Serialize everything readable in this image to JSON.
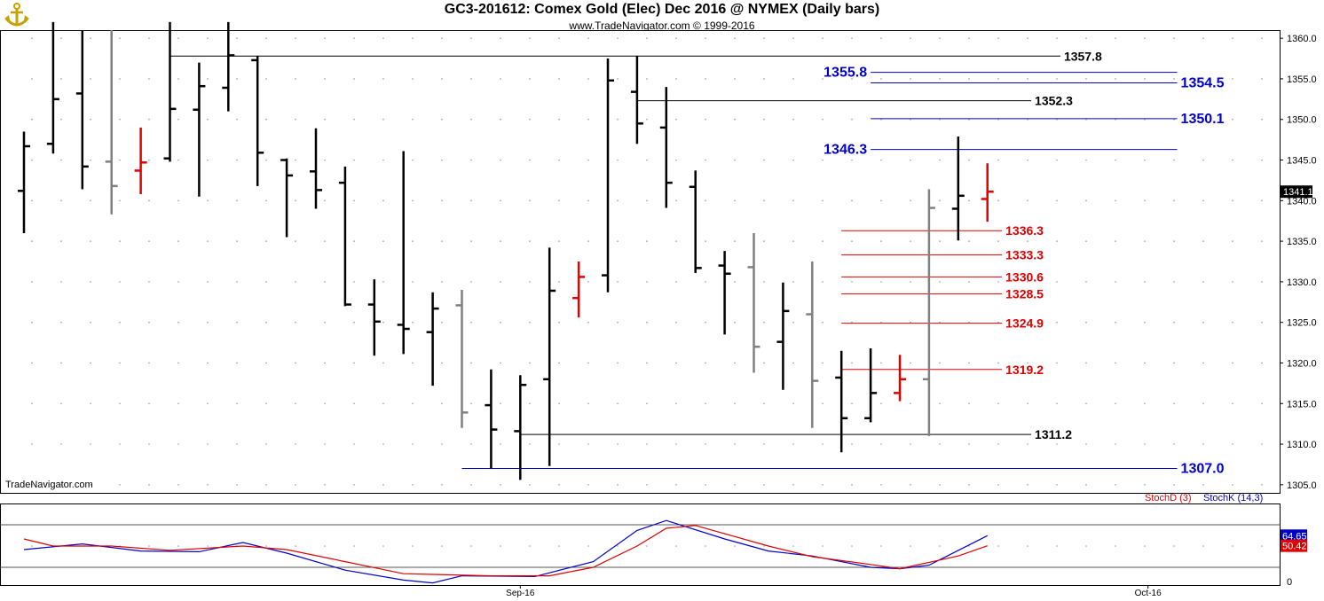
{
  "header": {
    "title": "GC3-201612:  Comex Gold (Elec) Dec 2016 @ NYMEX  (Daily bars)",
    "subtitle": "www.TradeNavigator.com © 1999-2016",
    "watermark": "TradeNavigator.com"
  },
  "colors": {
    "black_bar": "#000000",
    "gray_bar": "#808080",
    "red_bar": "#e00000",
    "blue_level": "#0000cc",
    "red_level": "#e00000",
    "black_level": "#000000",
    "stoch_k": "#0000cc",
    "stoch_d": "#e00000"
  },
  "chart_data": [
    {
      "type": "ohlc",
      "ylim": [
        1304,
        1361
      ],
      "y_ticks": [
        1305.0,
        1310.0,
        1315.0,
        1320.0,
        1325.0,
        1330.0,
        1335.0,
        1340.0,
        1345.0,
        1350.0,
        1355.0,
        1360.0
      ],
      "x_labels": [
        {
          "label": "Sep-16",
          "bar_index": 17
        },
        {
          "label": "Oct-16",
          "bar_index": 38.5
        }
      ],
      "last_price": {
        "label": "1341.1",
        "value": 1341.1
      },
      "bars": [
        {
          "o": 1341.2,
          "h": 1348.5,
          "l": 1336.0,
          "c": 1346.7,
          "color": "black"
        },
        {
          "o": 1347.0,
          "h": 1362.0,
          "l": 1345.8,
          "c": 1352.5,
          "color": "black"
        },
        {
          "o": 1353.2,
          "h": 1361.0,
          "l": 1341.4,
          "c": 1344.2,
          "color": "black"
        },
        {
          "o": 1344.8,
          "h": 1361.0,
          "l": 1338.3,
          "c": 1341.8,
          "color": "gray"
        },
        {
          "o": 1343.7,
          "h": 1349.0,
          "l": 1340.8,
          "c": 1344.7,
          "color": "red"
        },
        {
          "o": 1345.2,
          "h": 1362.0,
          "l": 1344.8,
          "c": 1351.3,
          "color": "black"
        },
        {
          "o": 1351.2,
          "h": 1357.0,
          "l": 1340.5,
          "c": 1354.1,
          "color": "black"
        },
        {
          "o": 1353.9,
          "h": 1362.0,
          "l": 1351.0,
          "c": 1357.9,
          "color": "black"
        },
        {
          "o": 1357.3,
          "h": 1357.8,
          "l": 1341.8,
          "c": 1345.9,
          "color": "black"
        },
        {
          "o": 1345.0,
          "h": 1345.2,
          "l": 1335.5,
          "c": 1343.1,
          "color": "black"
        },
        {
          "o": 1343.6,
          "h": 1348.9,
          "l": 1339.0,
          "c": 1341.3,
          "color": "black"
        },
        {
          "o": 1342.2,
          "h": 1344.2,
          "l": 1327.0,
          "c": 1327.2,
          "color": "black"
        },
        {
          "o": 1327.2,
          "h": 1330.3,
          "l": 1320.9,
          "c": 1325.1,
          "color": "black"
        },
        {
          "o": 1324.7,
          "h": 1346.1,
          "l": 1321.1,
          "c": 1324.2,
          "color": "black"
        },
        {
          "o": 1323.8,
          "h": 1328.7,
          "l": 1317.2,
          "c": 1326.7,
          "color": "black"
        },
        {
          "o": 1327.1,
          "h": 1329.0,
          "l": 1312.0,
          "c": 1313.9,
          "color": "gray"
        },
        {
          "o": 1314.8,
          "h": 1319.2,
          "l": 1307.0,
          "c": 1311.8,
          "color": "black"
        },
        {
          "o": 1311.6,
          "h": 1318.5,
          "l": 1305.6,
          "c": 1317.3,
          "color": "black"
        },
        {
          "o": 1318.0,
          "h": 1334.2,
          "l": 1307.3,
          "c": 1328.9,
          "color": "black"
        },
        {
          "o": 1328.0,
          "h": 1332.5,
          "l": 1325.6,
          "c": 1330.6,
          "color": "red"
        },
        {
          "o": 1330.8,
          "h": 1357.5,
          "l": 1328.7,
          "c": 1354.8,
          "color": "black"
        },
        {
          "o": 1353.4,
          "h": 1357.8,
          "l": 1347.0,
          "c": 1349.5,
          "color": "black"
        },
        {
          "o": 1349.0,
          "h": 1354.0,
          "l": 1339.1,
          "c": 1342.2,
          "color": "black"
        },
        {
          "o": 1341.7,
          "h": 1343.7,
          "l": 1331.1,
          "c": 1331.7,
          "color": "black"
        },
        {
          "o": 1332.0,
          "h": 1333.8,
          "l": 1323.5,
          "c": 1331.0,
          "color": "black"
        },
        {
          "o": 1331.8,
          "h": 1336.0,
          "l": 1318.8,
          "c": 1322.0,
          "color": "gray"
        },
        {
          "o": 1322.6,
          "h": 1329.9,
          "l": 1316.7,
          "c": 1326.4,
          "color": "black"
        },
        {
          "o": 1326.0,
          "h": 1332.5,
          "l": 1312.0,
          "c": 1317.8,
          "color": "gray"
        },
        {
          "o": 1318.2,
          "h": 1321.5,
          "l": 1309.0,
          "c": 1313.2,
          "color": "black"
        },
        {
          "o": 1313.2,
          "h": 1321.8,
          "l": 1312.7,
          "c": 1316.3,
          "color": "black"
        },
        {
          "o": 1316.3,
          "h": 1321.0,
          "l": 1315.3,
          "c": 1318.0,
          "color": "red"
        },
        {
          "o": 1318.0,
          "h": 1341.4,
          "l": 1311.0,
          "c": 1339.1,
          "color": "gray"
        },
        {
          "o": 1339.0,
          "h": 1347.9,
          "l": 1335.1,
          "c": 1340.6,
          "color": "black"
        },
        {
          "o": 1340.2,
          "h": 1344.6,
          "l": 1337.4,
          "c": 1341.1,
          "color": "red"
        }
      ],
      "levels": [
        {
          "label": "1357.8",
          "value": 1357.8,
          "color": "black",
          "from_bar": 5,
          "to_bar": 35.5,
          "label_side": "right"
        },
        {
          "label": "1355.8",
          "value": 1355.8,
          "color": "blue",
          "from_bar": 29,
          "to_bar": 39.5,
          "label_side": "left"
        },
        {
          "label": "1354.5",
          "value": 1354.5,
          "color": "blue",
          "from_bar": 29,
          "to_bar": 39.5,
          "label_side": "right"
        },
        {
          "label": "1352.3",
          "value": 1352.3,
          "color": "black",
          "from_bar": 21,
          "to_bar": 34.5,
          "label_side": "right"
        },
        {
          "label": "1350.1",
          "value": 1350.1,
          "color": "blue",
          "from_bar": 29,
          "to_bar": 39.5,
          "label_side": "right"
        },
        {
          "label": "1346.3",
          "value": 1346.3,
          "color": "blue",
          "from_bar": 29,
          "to_bar": 39.5,
          "label_side": "left"
        },
        {
          "label": "1336.3",
          "value": 1336.3,
          "color": "red",
          "from_bar": 28,
          "to_bar": 33.5,
          "label_side": "right"
        },
        {
          "label": "1333.3",
          "value": 1333.3,
          "color": "red",
          "from_bar": 28,
          "to_bar": 33.5,
          "label_side": "right"
        },
        {
          "label": "1330.6",
          "value": 1330.6,
          "color": "red",
          "from_bar": 28,
          "to_bar": 33.5,
          "label_side": "right"
        },
        {
          "label": "1328.5",
          "value": 1328.5,
          "color": "red",
          "from_bar": 28,
          "to_bar": 33.5,
          "label_side": "right"
        },
        {
          "label": "1324.9",
          "value": 1324.9,
          "color": "red",
          "from_bar": 28,
          "to_bar": 33.5,
          "label_side": "right"
        },
        {
          "label": "1319.2",
          "value": 1319.2,
          "color": "red",
          "from_bar": 28,
          "to_bar": 33.5,
          "label_side": "right"
        },
        {
          "label": "1311.2",
          "value": 1311.2,
          "color": "black",
          "from_bar": 17,
          "to_bar": 34.5,
          "label_side": "right"
        },
        {
          "label": "1307.0",
          "value": 1307.0,
          "color": "blue",
          "from_bar": 15,
          "to_bar": 39.5,
          "label_side": "right"
        }
      ]
    },
    {
      "type": "line",
      "ylim": [
        -5,
        110
      ],
      "y_ticks": [
        0
      ],
      "legend": [
        {
          "name": "StochD (3)",
          "color": "red"
        },
        {
          "name": "StochK (14,3)",
          "color": "blue"
        }
      ],
      "last_values": {
        "k": "64.65",
        "d": "50.42"
      },
      "reference_lines": [
        20,
        80
      ],
      "series": [
        {
          "name": "StochK (14,3)",
          "color": "blue",
          "values": [
            {
              "bar": 0,
              "v": 45
            },
            {
              "bar": 2,
              "v": 53
            },
            {
              "bar": 4,
              "v": 43
            },
            {
              "bar": 6,
              "v": 42
            },
            {
              "bar": 7.5,
              "v": 55
            },
            {
              "bar": 9,
              "v": 40
            },
            {
              "bar": 11,
              "v": 16
            },
            {
              "bar": 13,
              "v": 2
            },
            {
              "bar": 14,
              "v": -2
            },
            {
              "bar": 15,
              "v": 8
            },
            {
              "bar": 17.5,
              "v": 7
            },
            {
              "bar": 19.5,
              "v": 28
            },
            {
              "bar": 21,
              "v": 72
            },
            {
              "bar": 22,
              "v": 86
            },
            {
              "bar": 24,
              "v": 60
            },
            {
              "bar": 25.5,
              "v": 43
            },
            {
              "bar": 27,
              "v": 36
            },
            {
              "bar": 29,
              "v": 20
            },
            {
              "bar": 30,
              "v": 18
            },
            {
              "bar": 31,
              "v": 23
            },
            {
              "bar": 33,
              "v": 64.65
            }
          ]
        },
        {
          "name": "StochD (3)",
          "color": "red",
          "values": [
            {
              "bar": 0,
              "v": 60
            },
            {
              "bar": 1,
              "v": 50
            },
            {
              "bar": 3,
              "v": 50
            },
            {
              "bar": 5,
              "v": 44
            },
            {
              "bar": 7.5,
              "v": 50
            },
            {
              "bar": 9,
              "v": 45
            },
            {
              "bar": 11,
              "v": 28
            },
            {
              "bar": 13,
              "v": 11
            },
            {
              "bar": 14,
              "v": 10
            },
            {
              "bar": 16,
              "v": 8
            },
            {
              "bar": 18,
              "v": 8
            },
            {
              "bar": 19.5,
              "v": 20
            },
            {
              "bar": 21,
              "v": 50
            },
            {
              "bar": 22,
              "v": 75
            },
            {
              "bar": 23,
              "v": 79
            },
            {
              "bar": 25.5,
              "v": 50
            },
            {
              "bar": 27,
              "v": 35
            },
            {
              "bar": 29,
              "v": 24
            },
            {
              "bar": 30,
              "v": 18
            },
            {
              "bar": 31,
              "v": 27
            },
            {
              "bar": 32,
              "v": 36
            },
            {
              "bar": 33,
              "v": 50.42
            }
          ]
        }
      ]
    }
  ]
}
